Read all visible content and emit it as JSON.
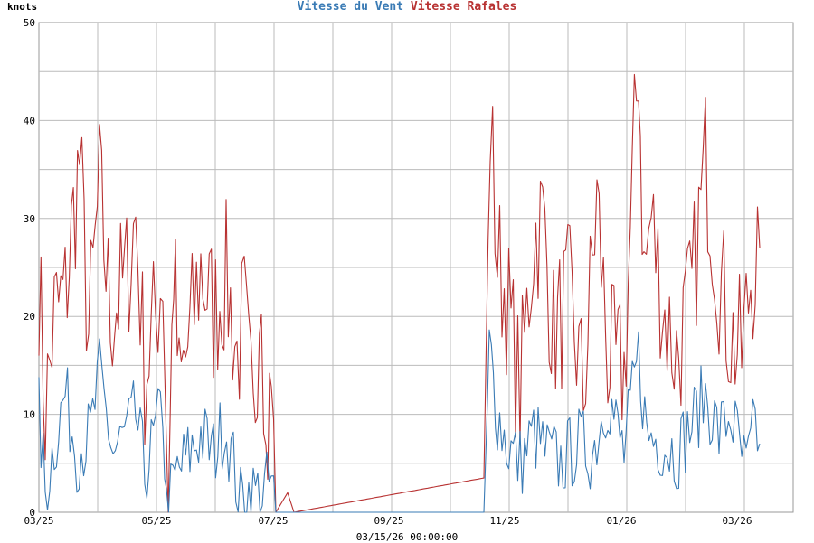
{
  "chart_data": {
    "type": "line",
    "ylabel": "knots",
    "ylim": [
      0,
      50
    ],
    "yticks": [
      0,
      10,
      20,
      30,
      40,
      50
    ],
    "xticks": [
      "03/25",
      "05/25",
      "07/25",
      "09/25",
      "11/25",
      "01/26",
      "03/26"
    ],
    "footer": "03/15/26 00:00:00",
    "series": [
      {
        "name": "Vitesse du Vent",
        "color": "#3a7bb5",
        "x": [
          "03/25",
          "03/25",
          "04/25",
          "04/25",
          "04/25",
          "04/25",
          "04/25",
          "05/25",
          "05/25",
          "05/25",
          "05/25",
          "06/25",
          "06/25",
          "06/25",
          "06/25",
          "07/25",
          "07/25",
          "07/25",
          "11/25",
          "11/25",
          "11/25",
          "11/25",
          "12/25",
          "12/25",
          "12/25",
          "12/25",
          "01/26",
          "01/26",
          "01/26",
          "01/26",
          "02/26",
          "02/26",
          "02/26",
          "02/26",
          "03/26",
          "03/26",
          "03/26"
        ],
        "y": [
          10,
          2,
          8,
          3,
          13,
          10,
          7,
          14,
          6,
          10,
          4,
          11,
          5,
          0,
          6,
          9,
          3,
          2,
          4,
          17,
          8,
          6,
          9,
          6,
          5,
          7,
          13,
          6,
          16,
          9,
          7,
          11,
          8,
          12,
          5,
          10,
          7
        ]
      },
      {
        "name": "Vitesse Rafales",
        "color": "#b83232",
        "x": [
          "03/25",
          "03/25",
          "04/25",
          "04/25",
          "04/25",
          "04/25",
          "04/25",
          "05/25",
          "05/25",
          "05/25",
          "05/25",
          "06/25",
          "06/25",
          "06/25",
          "06/25",
          "07/25",
          "07/25",
          "07/25",
          "11/25",
          "11/25",
          "11/25",
          "11/25",
          "12/25",
          "12/25",
          "12/25",
          "12/25",
          "01/26",
          "01/26",
          "01/26",
          "01/26",
          "02/26",
          "02/26",
          "02/26",
          "02/26",
          "03/26",
          "03/26",
          "03/26"
        ],
        "y": [
          24,
          10,
          22,
          16,
          29,
          36,
          20,
          33,
          22,
          30,
          14,
          25,
          5,
          26,
          10,
          25,
          18,
          27,
          4,
          40,
          25,
          32,
          14,
          29,
          18,
          30,
          34,
          20,
          47,
          26,
          20,
          25,
          16,
          36,
          10,
          30,
          27
        ]
      }
    ]
  }
}
